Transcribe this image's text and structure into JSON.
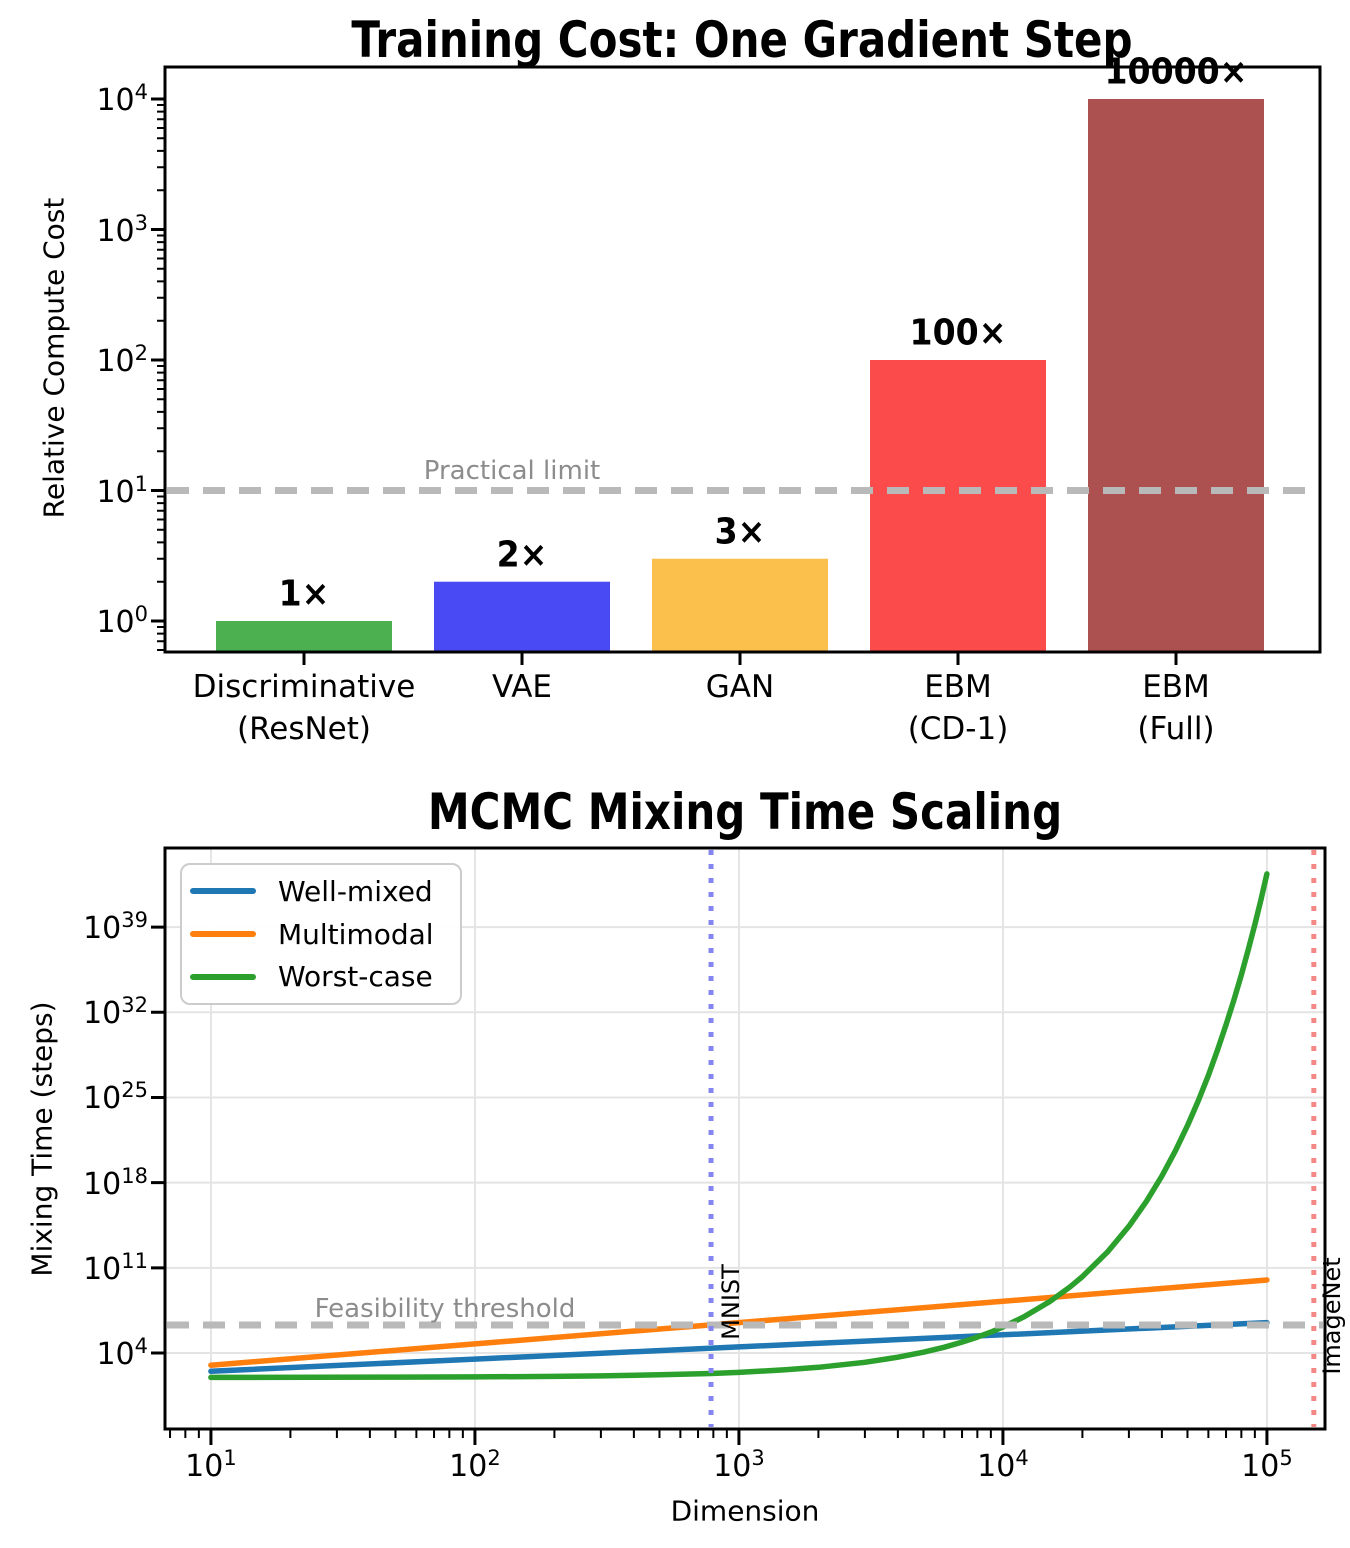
{
  "figure": {
    "background": "#ffffff"
  },
  "chart_data": [
    {
      "id": "training-cost",
      "type": "bar",
      "title": "Training Cost: One Gradient Step",
      "xlabel": "",
      "ylabel": "Relative Compute Cost",
      "yscale": "log",
      "ylim_log10": [
        -0.24,
        4.25
      ],
      "ytick_exponents": [
        0,
        1,
        2,
        3,
        4
      ],
      "grid": false,
      "categories": [
        [
          "Discriminative",
          "(ResNet)"
        ],
        [
          "VAE"
        ],
        [
          "GAN"
        ],
        [
          "EBM",
          "(CD-1)"
        ],
        [
          "EBM",
          "(Full)"
        ]
      ],
      "values": [
        1,
        2,
        3,
        100,
        10000
      ],
      "bar_labels": [
        "1×",
        "2×",
        "3×",
        "100×",
        "10000×"
      ],
      "bar_colors": [
        "#4CAF50",
        "#4A4AF5",
        "#FBBF4B",
        "#FB4B4B",
        "#AC5050"
      ],
      "bar_slugs": [
        "discriminative-resnet",
        "vae",
        "gan",
        "ebm-cd1",
        "ebm-full"
      ],
      "reference_line": {
        "value": 10,
        "label": "Practical limit",
        "color": "#B9B9B9",
        "style": "dashed"
      }
    },
    {
      "id": "mcmc-mixing",
      "type": "line",
      "title": "MCMC Mixing Time Scaling",
      "xlabel": "Dimension",
      "ylabel": "Mixing Time (steps)",
      "xscale": "log",
      "yscale": "log",
      "xlim_log10": [
        0.826,
        5.222
      ],
      "ylim_log10": [
        -2.24,
        45.5
      ],
      "xtick_exponents": [
        1,
        2,
        3,
        4,
        5
      ],
      "ytick_exponents": [
        4,
        11,
        18,
        25,
        32,
        39
      ],
      "grid": true,
      "legend_position": "upper left",
      "points_format": "[dimension, log10(mixing_time_steps)]",
      "series": [
        {
          "name": "Well-mixed",
          "color": "#1F77B4",
          "points": [
            [
              10,
              2.5
            ],
            [
              100,
              3.5
            ],
            [
              1000,
              4.5
            ],
            [
              10000,
              5.5
            ],
            [
              100000,
              6.5
            ]
          ]
        },
        {
          "name": "Multimodal",
          "color": "#FF7F0E",
          "points": [
            [
              10,
              3.0
            ],
            [
              100,
              4.75
            ],
            [
              1000,
              6.5
            ],
            [
              10000,
              8.25
            ],
            [
              100000,
              10.0
            ]
          ]
        },
        {
          "name": "Worst-case",
          "color": "#2CA02C",
          "points": [
            [
              10,
              2.0
            ],
            [
              50,
              2.02
            ],
            [
              100,
              2.04
            ],
            [
              200,
              2.08
            ],
            [
              300,
              2.12
            ],
            [
              500,
              2.21
            ],
            [
              784,
              2.32
            ],
            [
              1000,
              2.41
            ],
            [
              1500,
              2.62
            ],
            [
              2000,
              2.83
            ],
            [
              3000,
              3.24
            ],
            [
              4000,
              3.66
            ],
            [
              5000,
              4.07
            ],
            [
              6000,
              4.48
            ],
            [
              7000,
              4.9
            ],
            [
              8000,
              5.31
            ],
            [
              9000,
              5.72
            ],
            [
              10000,
              6.14
            ],
            [
              12000,
              6.97
            ],
            [
              15000,
              8.21
            ],
            [
              18000,
              9.45
            ],
            [
              20000,
              10.28
            ],
            [
              25000,
              12.35
            ],
            [
              30000,
              14.41
            ],
            [
              35000,
              16.48
            ],
            [
              40000,
              18.55
            ],
            [
              45000,
              20.62
            ],
            [
              50000,
              22.69
            ],
            [
              55000,
              24.75
            ],
            [
              60000,
              26.82
            ],
            [
              65000,
              28.89
            ],
            [
              70000,
              30.96
            ],
            [
              75000,
              33.03
            ],
            [
              80000,
              35.09
            ],
            [
              85000,
              37.16
            ],
            [
              90000,
              39.23
            ],
            [
              95000,
              41.3
            ],
            [
              100000,
              43.37
            ]
          ]
        }
      ],
      "threshold_line": {
        "log10_y": 6.3,
        "label": "Feasibility threshold",
        "color": "#B9B9B9",
        "style": "dashed"
      },
      "marker_lines": [
        {
          "x": 784,
          "label": "MNIST",
          "color": "#8585F2",
          "style": "dotted"
        },
        {
          "x": 150528,
          "label": "ImageNet",
          "color": "#F58787",
          "style": "dotted"
        }
      ]
    }
  ]
}
